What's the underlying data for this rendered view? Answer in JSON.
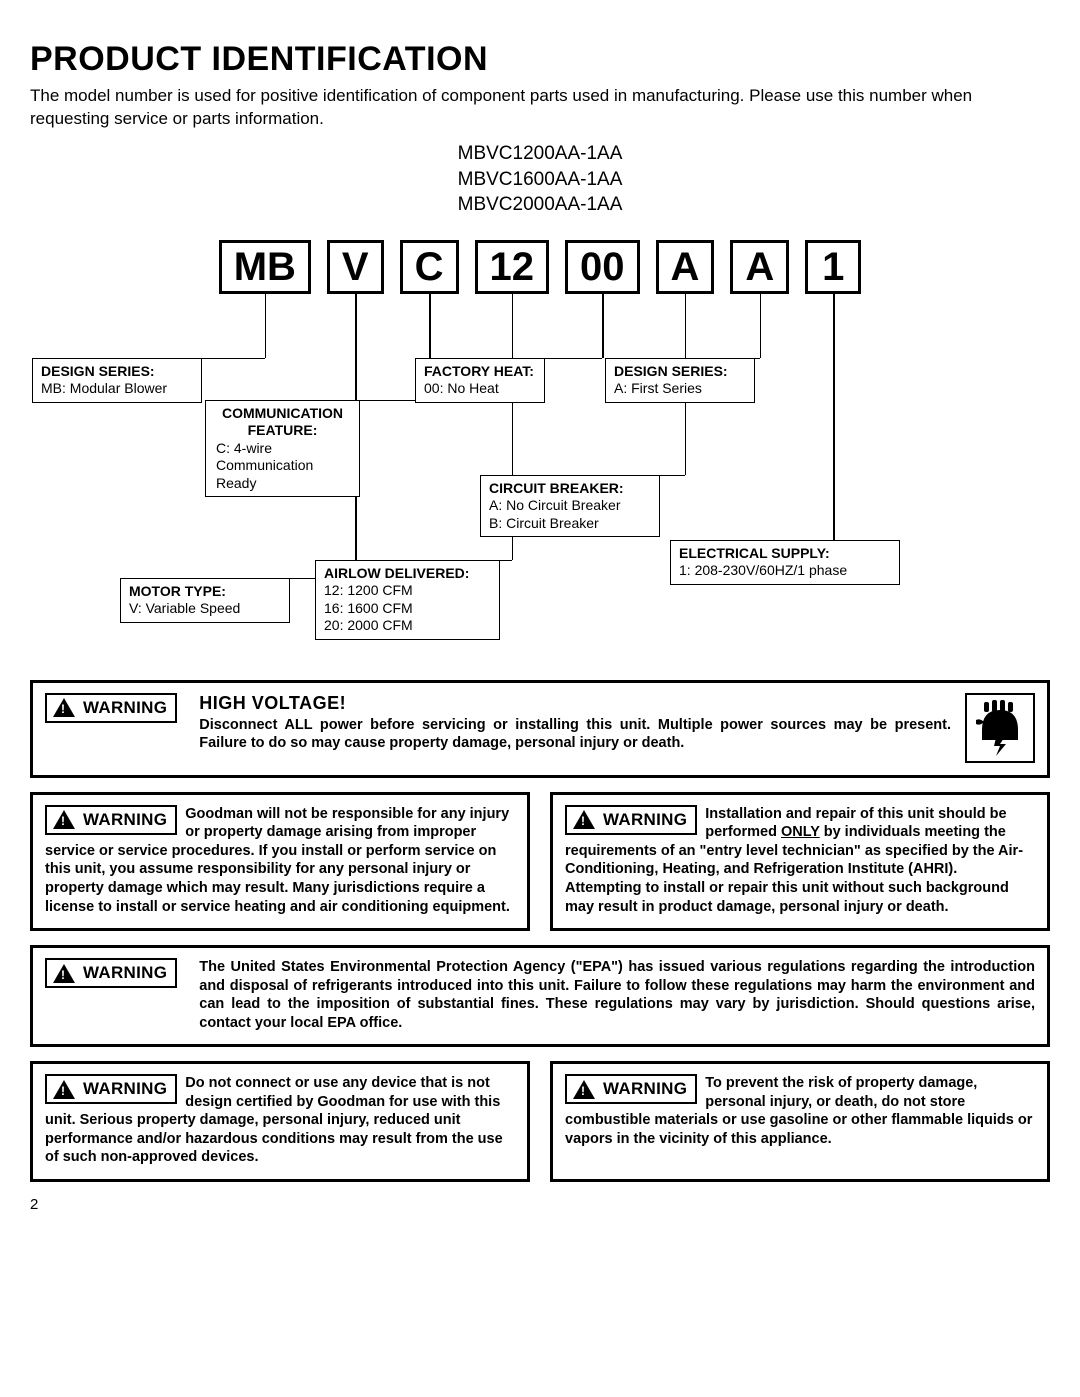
{
  "page": {
    "title": "PRODUCT IDENTIFICATION",
    "intro": "The model number is used for positive identification of component parts used in manufacturing.  Please use this number when requesting service or parts information.",
    "page_number": "2"
  },
  "models": [
    "MBVC1200AA-1AA",
    "MBVC1600AA-1AA",
    "MBVC2000AA-1AA"
  ],
  "code_segments": [
    "MB",
    "V",
    "C",
    "12",
    "00",
    "A",
    "A",
    "1"
  ],
  "decoder": {
    "design_series_mb": {
      "label": "DESIGN SERIES:",
      "value": "MB: Modular Blower"
    },
    "motor_type": {
      "label": "MOTOR TYPE:",
      "value": "V: Variable Speed"
    },
    "communication": {
      "label": "COMMUNICATION FEATURE:",
      "value": "C: 4-wire Communication Ready"
    },
    "airflow": {
      "label": "AIRLOW DELIVERED:",
      "lines": [
        "12:  1200 CFM",
        "16:  1600 CFM",
        "20:  2000 CFM"
      ]
    },
    "factory_heat": {
      "label": "FACTORY HEAT:",
      "value": "00: No Heat"
    },
    "circuit_breaker": {
      "label": "CIRCUIT BREAKER:",
      "lines": [
        "A: No Circuit Breaker",
        "B:  Circuit Breaker"
      ]
    },
    "design_series_a": {
      "label": "DESIGN SERIES:",
      "value": "A: First Series"
    },
    "electrical_supply": {
      "label": "ELECTRICAL SUPPLY:",
      "value": "1: 208-230V/60HZ/1 phase"
    }
  },
  "warnings": {
    "badge_label": "WARNING",
    "high_voltage": {
      "heading": "HIGH VOLTAGE!",
      "text": "Disconnect ALL power before servicing or installing this unit. Multiple power sources may be present. Failure to do so may cause property damage, personal injury or death."
    },
    "responsibility": "Goodman will not be responsible for any injury or property damage arising from improper service or service procedures. If you install or perform service on this unit, you assume responsibility for any personal injury or property damage which may result. Many jurisdictions require a license to install or service heating and air conditioning equipment.",
    "installation_pre": "Installation and repair of this unit should be performed ",
    "installation_only": "ONLY",
    "installation_post": " by individuals meeting the requirements of an \"entry level technician\" as specified by the Air-Conditioning, Heating, and Refrigeration Institute (AHRI).  Attempting to install or repair this unit without such background may result in product damage, personal injury or death.",
    "epa": "The United States Environmental Protection Agency (\"EPA\") has issued various regulations regarding the introduction and disposal of refrigerants introduced into this unit.  Failure to follow these regulations may harm the environment and can lead to the imposition of substantial fines.  These regulations may vary by jurisdiction.  Should questions arise, contact your local EPA office.",
    "device": "Do not connect or use any device that is not design certified by Goodman for use with this unit.  Serious property damage, personal injury, reduced unit performance and/or hazardous conditions may result from the use of such non-approved devices.",
    "combustible": "To prevent the risk of property damage, personal injury, or death, do not store combustible materials or use gasoline or other flammable liquids or vapors in the vicinity of this appliance."
  }
}
